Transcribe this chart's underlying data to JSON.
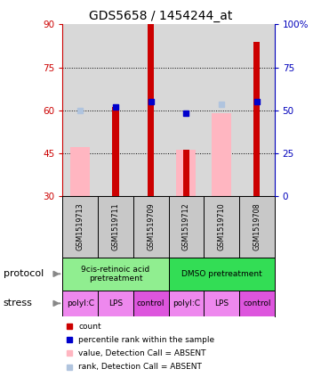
{
  "title": "GDS5658 / 1454244_at",
  "samples": [
    "GSM1519713",
    "GSM1519711",
    "GSM1519709",
    "GSM1519712",
    "GSM1519710",
    "GSM1519708"
  ],
  "bar_bottom": 30,
  "ylim": [
    30,
    90
  ],
  "ylim_right": [
    0,
    100
  ],
  "yticks_left": [
    30,
    45,
    60,
    75,
    90
  ],
  "yticks_right": [
    0,
    25,
    50,
    75,
    100
  ],
  "red_bar_top": [
    30,
    61,
    90,
    46,
    30,
    84
  ],
  "pink_bar_top": [
    47,
    30,
    30,
    46,
    59,
    30
  ],
  "blue_square_y": [
    60,
    61,
    63,
    59,
    62,
    63
  ],
  "absent_blue": [
    true,
    false,
    false,
    false,
    true,
    false
  ],
  "protocols": [
    "9cis-retinoic acid\npretreatment",
    "DMSO pretreatment"
  ],
  "stress_labels": [
    "polyI:C",
    "LPS",
    "control",
    "polyI:C",
    "LPS",
    "control"
  ],
  "red_bar_color": "#cc0000",
  "pink_bar_color": "#ffb6c1",
  "blue_sq_color": "#0000cc",
  "lightblue_sq_color": "#b0c4de",
  "left_axis_color": "#cc0000",
  "right_axis_color": "#0000bb",
  "bg_color": "#ffffff",
  "plot_bg_color": "#d8d8d8",
  "sample_bg_color": "#c8c8c8",
  "protocol_color_1": "#90ee90",
  "protocol_color_2": "#33dd55",
  "stress_color_light": "#ee88ee",
  "stress_color_dark": "#dd55dd"
}
